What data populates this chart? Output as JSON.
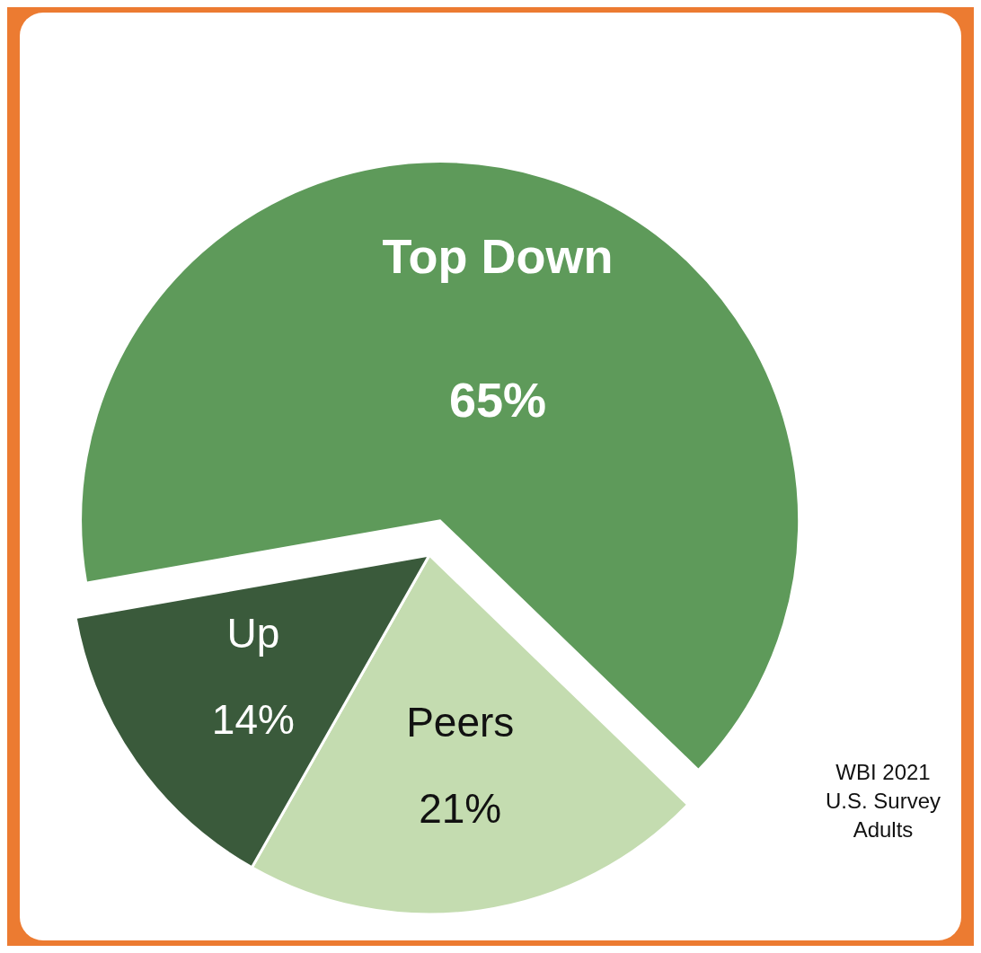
{
  "chart_data": {
    "type": "pie",
    "categories": [
      "Top Down",
      "Peers",
      "Up"
    ],
    "values": [
      65,
      21,
      14
    ],
    "colors": [
      "#5e9a5a",
      "#c4dcb0",
      "#3a5a3b"
    ],
    "value_labels": [
      "65%",
      "21%",
      "14%"
    ],
    "annotations": [
      "WBI 2021\nU.S. Survey\nAdults"
    ]
  }
}
